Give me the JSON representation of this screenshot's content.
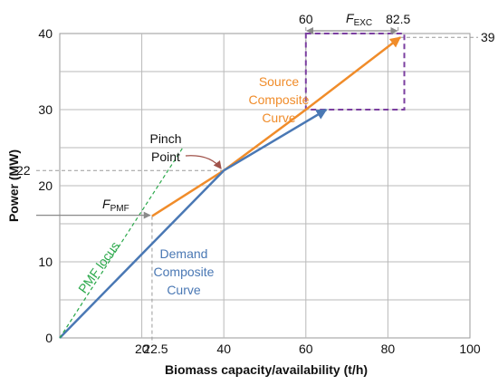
{
  "chart_data": {
    "type": "line",
    "xlabel": "Biomass capacity/availability  (t/h)",
    "ylabel": "Power (MW)",
    "xlim": [
      0,
      100
    ],
    "ylim": [
      0,
      40
    ],
    "x_ticks": [
      20,
      40,
      60,
      80,
      100
    ],
    "y_ticks": [
      0,
      10,
      20,
      30,
      40
    ],
    "grid": true,
    "series": [
      {
        "name": "Source Composite Curve",
        "color": "#f08c2a",
        "points": [
          [
            22.5,
            16
          ],
          [
            40,
            22
          ],
          [
            60,
            30
          ],
          [
            83,
            39.5
          ]
        ]
      },
      {
        "name": "Demand Composite Curve",
        "color": "#4a78b4",
        "points": [
          [
            0,
            0
          ],
          [
            40,
            22
          ],
          [
            65,
            30
          ]
        ]
      },
      {
        "name": "PMF locus",
        "color": "#2aa84a",
        "style": "dashed",
        "points": [
          [
            0,
            0
          ],
          [
            30,
            25
          ]
        ]
      }
    ],
    "annotations": {
      "source_label": [
        "Source",
        "Composite",
        "Curve"
      ],
      "demand_label": [
        "Demand",
        "Composite",
        "Curve"
      ],
      "pmf_locus_label": "PMF locus",
      "pinch_label": [
        "Pinch",
        "Point"
      ],
      "pinch_point": [
        40,
        22
      ],
      "f_pmf": {
        "main": "F",
        "sub": "PMF",
        "from_x": 0,
        "to_x": 22.5,
        "y": 16
      },
      "f_exc": {
        "main": "F",
        "sub": "EXC",
        "from_x": 60,
        "to_x": 82.5,
        "y": 40.3
      },
      "exc_start_label": "60",
      "exc_end_label": "82.5",
      "y_ref_22_label": "22",
      "y_ref_39_label": "39",
      "x_ref_22_5_label": "22.5",
      "exc_box": {
        "x0": 60,
        "x1": 84,
        "y0": 30,
        "y1": 40,
        "color": "#7b3fa0"
      }
    }
  }
}
